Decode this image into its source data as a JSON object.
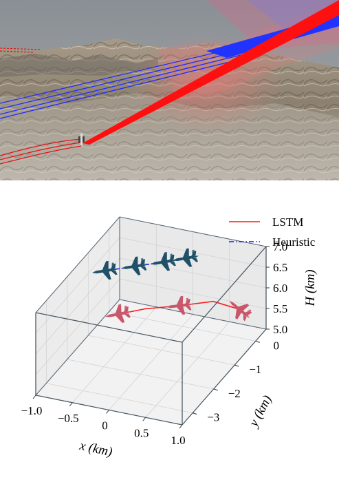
{
  "colors": {
    "lstm": "#ff1a1a",
    "heuristic": "#1a1aff",
    "aircraft_dark": "#1f5068",
    "aircraft_light": "#c9566a"
  },
  "chart_data": {
    "type": "scatter",
    "subtype": "3d trajectory",
    "legend": {
      "placement": "top-right",
      "entries": [
        {
          "label": "LSTM",
          "style": "solid",
          "color": "#ff1a1a"
        },
        {
          "label": "Heuristic",
          "style": "dash-dot",
          "color": "#1a1aff"
        }
      ]
    },
    "axes": {
      "x": {
        "label": "x (km)",
        "range": [
          -1.0,
          1.0
        ],
        "ticks": [
          "-1.0",
          "-0.5",
          "0",
          "0.5",
          "1.0"
        ]
      },
      "y": {
        "label": "y (km)",
        "range": [
          -3.5,
          0.5
        ],
        "ticks": [
          "-3",
          "-2",
          "-1",
          "0"
        ]
      },
      "z": {
        "label": "H (km)",
        "range": [
          5.0,
          7.0
        ],
        "ticks": [
          "5.0",
          "5.5",
          "6.0",
          "6.5",
          "7.0"
        ]
      }
    },
    "grid": true,
    "series": [
      {
        "name": "LSTM",
        "points": [
          {
            "x": -0.45,
            "y": -1.5,
            "z": 6.0
          },
          {
            "x": -0.1,
            "y": -1.4,
            "z": 6.2
          },
          {
            "x": 0.3,
            "y": -1.2,
            "z": 6.3
          },
          {
            "x": 0.65,
            "y": -0.8,
            "z": 6.3
          },
          {
            "x": 0.95,
            "y": -0.6,
            "z": 6.1
          }
        ]
      },
      {
        "name": "Heuristic",
        "points": [
          {
            "x": -1.0,
            "y": -0.2,
            "z": 6.1
          },
          {
            "x": -0.6,
            "y": -0.2,
            "z": 6.35
          },
          {
            "x": -0.2,
            "y": -0.2,
            "z": 6.6
          },
          {
            "x": 0.1,
            "y": -0.2,
            "z": 6.8
          }
        ]
      }
    ]
  }
}
